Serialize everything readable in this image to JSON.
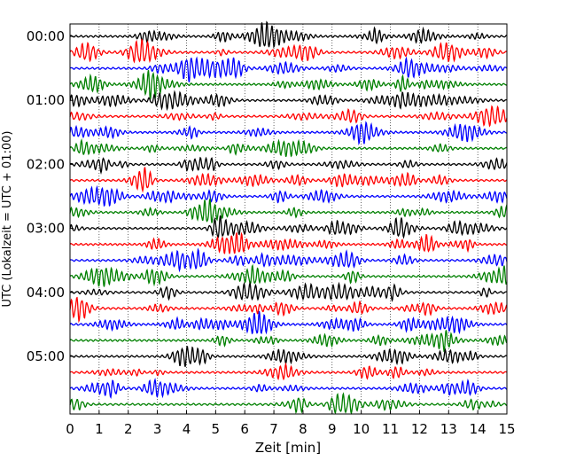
{
  "chart_data": {
    "type": "line",
    "subtype": "helicorder",
    "xlabel": "Zeit  [min]",
    "ylabel": "UTC (Lokalzeit = UTC + 01:00)",
    "xlim": [
      0,
      15
    ],
    "x_ticks": [
      "0",
      "1",
      "2",
      "3",
      "4",
      "5",
      "6",
      "7",
      "8",
      "9",
      "10",
      "11",
      "12",
      "13",
      "14",
      "15"
    ],
    "y_tick_labels": [
      "00:00",
      "01:00",
      "02:00",
      "03:00",
      "04:00",
      "05:00"
    ],
    "traces_per_hour": 4,
    "trace_count": 24,
    "trace_duration_min": 15,
    "trace_colors": [
      "#000000",
      "#ff0000",
      "#0000ff",
      "#008000"
    ],
    "grid": "vertical dotted lines at each minute"
  }
}
